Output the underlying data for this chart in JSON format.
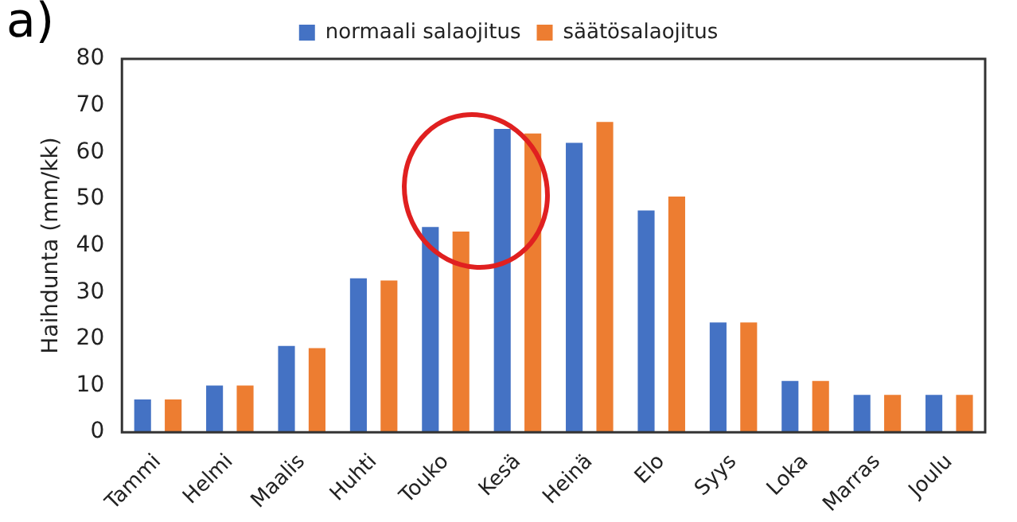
{
  "chart_data": {
    "type": "bar",
    "title": "a)",
    "ylabel": "Haihdunta (mm/kk)",
    "categories": [
      "Tammi",
      "Helmi",
      "Maalis",
      "Huhti",
      "Touko",
      "Kesä",
      "Heinä",
      "Elo",
      "Syys",
      "Loka",
      "Marras",
      "Joulu"
    ],
    "series": [
      {
        "name": "normaali salaojitus",
        "color": "#4472c4",
        "values": [
          7,
          10,
          18.5,
          33,
          44,
          65,
          62,
          47.5,
          23.5,
          11,
          8,
          8
        ]
      },
      {
        "name": "säätösalaojitus",
        "color": "#ed7d31",
        "values": [
          7,
          10,
          18,
          32.5,
          43,
          64,
          66.5,
          50.5,
          23.5,
          11,
          8,
          8
        ]
      }
    ],
    "ylim": [
      0,
      80
    ],
    "yticks": [
      0,
      10,
      20,
      30,
      40,
      50,
      60,
      70,
      80
    ],
    "grid": false,
    "legend": "top"
  }
}
